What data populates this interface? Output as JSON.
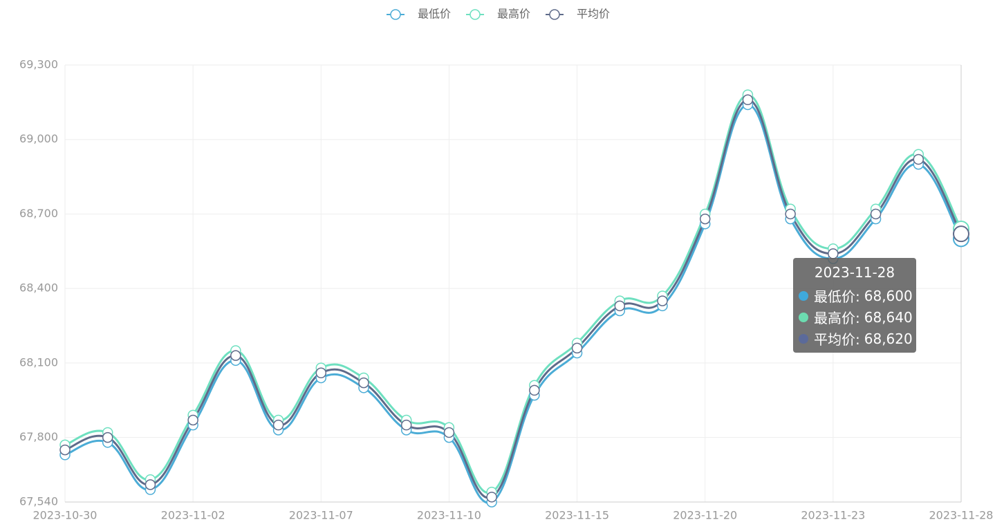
{
  "chart_data": {
    "type": "line",
    "categories": [
      "2023-10-30",
      null,
      null,
      "2023-11-02",
      null,
      null,
      "2023-11-07",
      null,
      null,
      "2023-11-10",
      null,
      null,
      "2023-11-15",
      null,
      null,
      "2023-11-20",
      null,
      null,
      "2023-11-23",
      null,
      null,
      "2023-11-28"
    ],
    "series": [
      {
        "name": "最低价",
        "color": "#4bacd6",
        "values": [
          67730,
          67780,
          67590,
          67850,
          68110,
          67830,
          68040,
          68000,
          67830,
          67800,
          67540,
          67970,
          68140,
          68310,
          68330,
          68660,
          69140,
          68680,
          68520,
          68680,
          68900,
          68600
        ],
        "value_labels": [
          null,
          null,
          null,
          null,
          null,
          null,
          null,
          null,
          null,
          null,
          null,
          null,
          null,
          null,
          null,
          null,
          null,
          null,
          null,
          null,
          null,
          "68,600"
        ]
      },
      {
        "name": "最高价",
        "color": "#6ee0c0",
        "values": [
          67770,
          67820,
          67630,
          67890,
          68150,
          67870,
          68080,
          68040,
          67870,
          67840,
          67580,
          68010,
          68180,
          68350,
          68370,
          68700,
          69180,
          68720,
          68560,
          68720,
          68940,
          68640
        ],
        "value_labels": [
          null,
          null,
          null,
          null,
          null,
          null,
          null,
          null,
          null,
          null,
          null,
          null,
          null,
          null,
          null,
          null,
          null,
          null,
          null,
          null,
          null,
          "68,640"
        ]
      },
      {
        "name": "平均价",
        "color": "#5f6b8a",
        "values": [
          67750,
          67800,
          67610,
          67870,
          68130,
          67850,
          68060,
          68020,
          67850,
          67820,
          67560,
          67990,
          68160,
          68330,
          68350,
          68680,
          69160,
          68700,
          68540,
          68700,
          68920,
          68620
        ],
        "value_labels": [
          null,
          null,
          null,
          null,
          null,
          null,
          null,
          null,
          null,
          null,
          null,
          null,
          null,
          null,
          null,
          null,
          null,
          null,
          null,
          null,
          null,
          "68,620"
        ]
      }
    ],
    "ylim": [
      67540,
      69300
    ],
    "yticks": [
      {
        "value": 67540,
        "label": "67,540"
      },
      {
        "value": 67800,
        "label": "67,800"
      },
      {
        "value": 68100,
        "label": "68,100"
      },
      {
        "value": 68400,
        "label": "68,400"
      },
      {
        "value": 68700,
        "label": "68,700"
      },
      {
        "value": 69000,
        "label": "69,000"
      },
      {
        "value": 69300,
        "label": "69,300"
      }
    ],
    "grid": true,
    "legend": "top",
    "tooltip_index": 21,
    "tooltip_colors": [
      "#3fa9dc",
      "#6cdcb0",
      "#5b6a9a"
    ]
  }
}
